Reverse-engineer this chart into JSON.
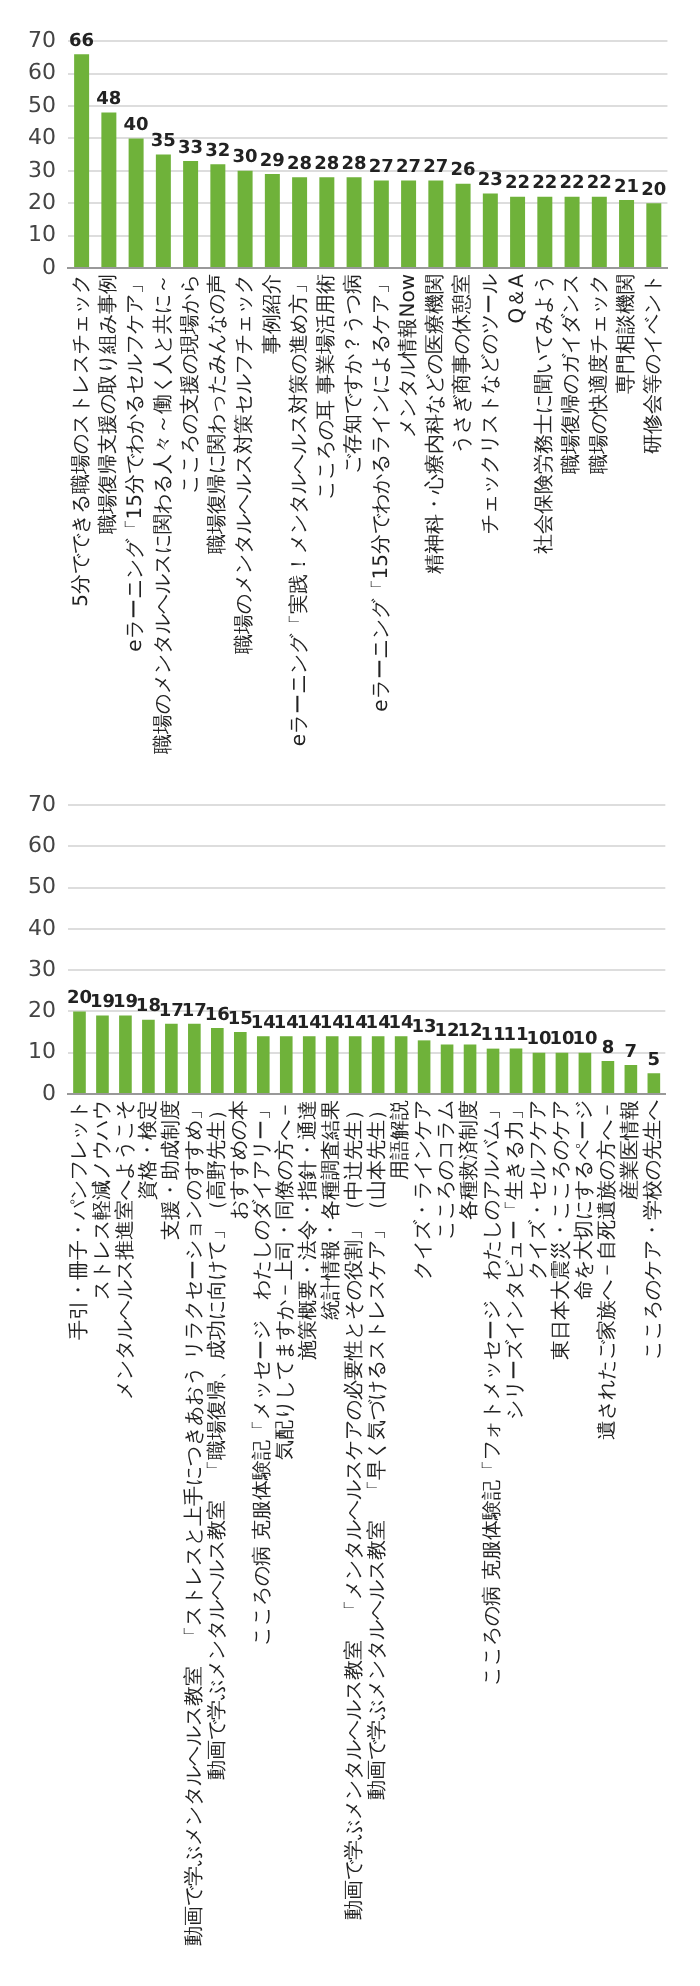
{
  "chart_data": [
    {
      "type": "bar",
      "categories": [
        "5分でできる職場のストレスチェック",
        "職場復帰支援の取り組み事例",
        "eラーニング「15分でわかるセルフケア」",
        "職場のメンタルヘルスに関わる人々～働く人と共に～",
        "こころの支援の現場から",
        "職場復帰に関わったみんなの声",
        "職場のメンタルヘルス対策セルフチェック",
        "事例紹介",
        "eラーニング「実践！メンタルヘルス対策の進め方」",
        "こころの耳 事業場活用術",
        "ご存知ですか？うつ病",
        "eラーニング「15分でわかるラインによるケア」",
        "メンタル情報Now",
        "精神科・心療内科などの医療機関",
        "うさぎ商事の休憩室",
        "チェックリストなどのツール",
        "Q＆A",
        "社会保険労務士に聞いてみよう",
        "職場復帰のガイダンス",
        "職場の快適度チェック",
        "専門相談機関",
        "研修会等のイベント"
      ],
      "values": [
        66,
        48,
        40,
        35,
        33,
        32,
        30,
        29,
        28,
        28,
        28,
        27,
        27,
        27,
        26,
        23,
        22,
        22,
        22,
        22,
        21,
        20
      ],
      "color": "#6fb23a",
      "ylim": [
        0,
        70
      ],
      "yticks": [
        0,
        10,
        20,
        30,
        40,
        50,
        60,
        70
      ],
      "grid": "y",
      "data_labels": true
    },
    {
      "type": "bar",
      "categories": [
        "手引・冊子・パンフレット",
        "ストレス軽減ノウハウ",
        "メンタルヘルス推進室へようこそ",
        "資格・検定",
        "支援・助成制度",
        "動画で学ぶメンタルヘルス教室　「ストレスと上手につきあおう リラクセーションのすすめ」",
        "動画で学ぶメンタルヘルス教室　「職場復帰、成功に向けて」（高野先生）",
        "おすすめの本",
        "こころの病 克服体験記「メッセージ　わたしのダイアリー」",
        "気配りしてますか－上司・同僚の方へ－",
        "施策概要・法令・指針・通達",
        "統計情報・各種調査結果",
        "動画で学ぶメンタルヘルス教室　「メンタルヘルスケアの必要性とその役割」（中辻先生）",
        "動画で学ぶメンタルヘルス教室　「早く気づけるストレスケア」（山本先生）",
        "用語解説",
        "クイズ・ラインケア",
        "こころのコラム",
        "各種救済制度",
        "こころの病 克服体験記「フォトメッセージ　わたしのアルバム」",
        "シリーズインタビュー「生きる力」",
        "クイズ・セルフケア",
        "東日本大震災・こころのケア",
        "命を大切にするページ",
        "遺されたご家族へ－自死遺族の方へ－",
        "産業医情報",
        "こころのケア・学校の先生へ"
      ],
      "values": [
        20,
        19,
        19,
        18,
        17,
        17,
        16,
        15,
        14,
        14,
        14,
        14,
        14,
        14,
        14,
        13,
        12,
        12,
        11,
        11,
        10,
        10,
        10,
        8,
        7,
        5
      ],
      "color": "#6fb23a",
      "ylim": [
        0,
        70
      ],
      "yticks": [
        0,
        10,
        20,
        30,
        40,
        50,
        60,
        70
      ],
      "grid": "y",
      "data_labels": true
    }
  ]
}
